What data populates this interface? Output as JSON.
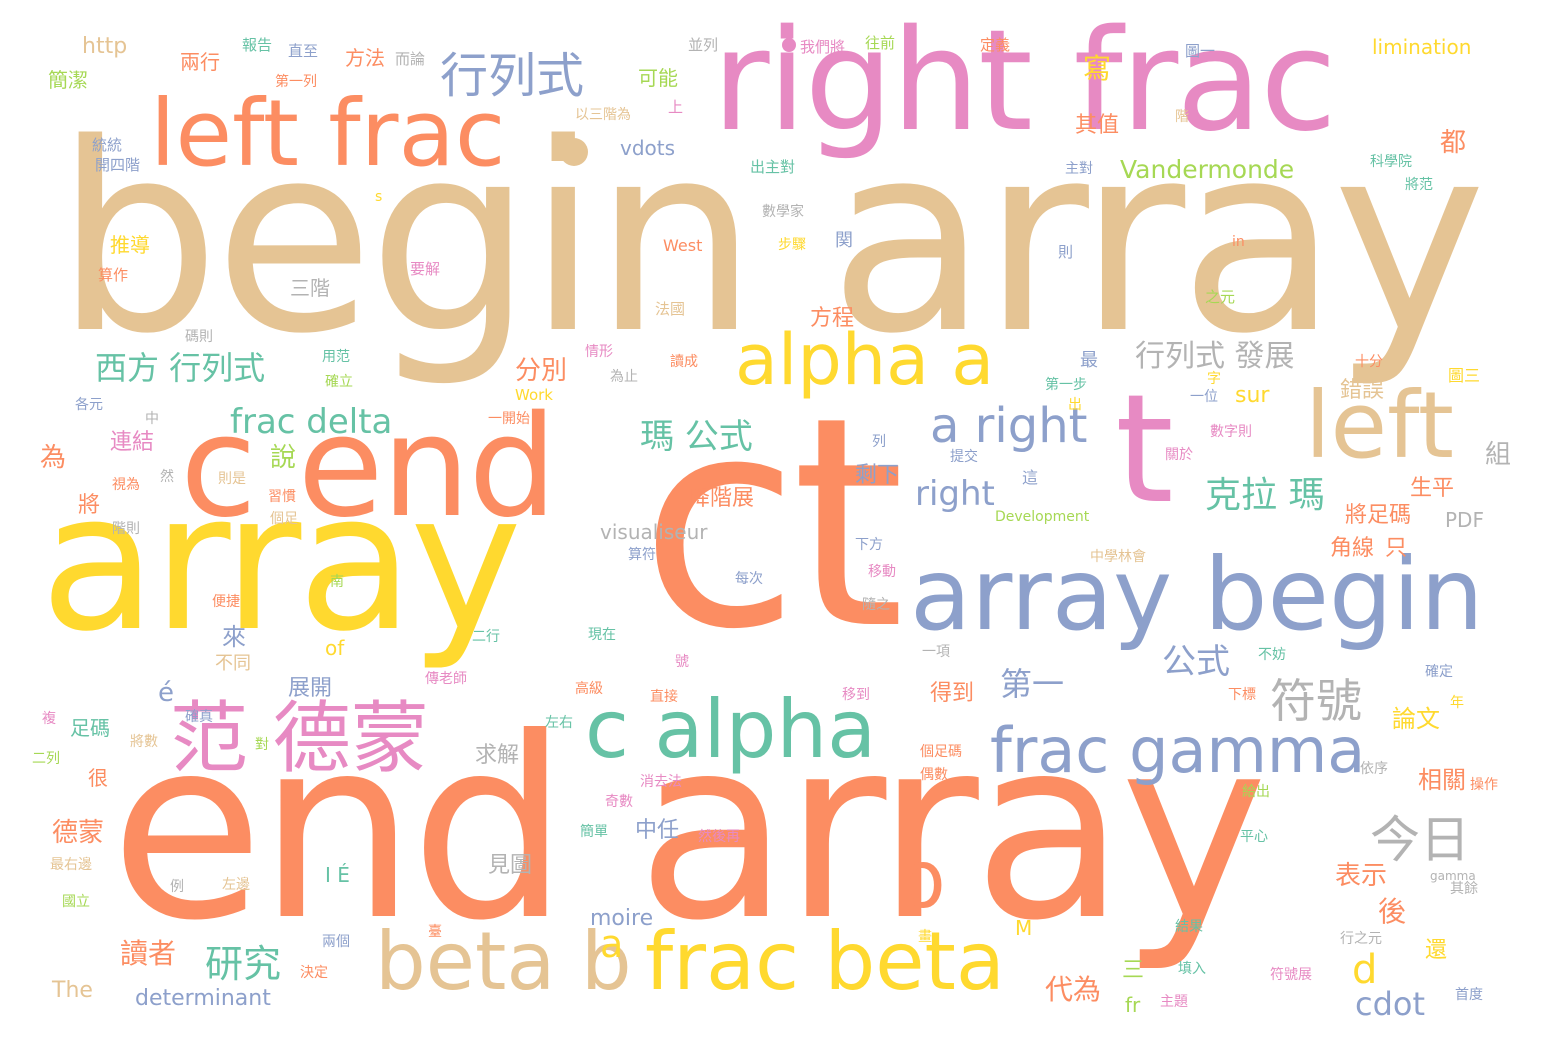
{
  "palette": {
    "tan": "#e5c494",
    "orange": "#fc8d62",
    "yellow": "#ffd92f",
    "blue": "#8da0cb",
    "pink": "#e78ac3",
    "green": "#66c2a5",
    "lime": "#a6d854",
    "gray": "#b3b3b3"
  },
  "words": [
    {
      "text": "begin array",
      "color": "tan"
    },
    {
      "text": "end array",
      "color": "orange"
    },
    {
      "text": "array",
      "color": "yellow"
    },
    {
      "text": "ct",
      "color": "orange"
    },
    {
      "text": "right frac",
      "color": "pink"
    },
    {
      "text": "c end",
      "color": "orange"
    },
    {
      "text": "left frac",
      "color": "orange"
    },
    {
      "text": "array begin",
      "color": "blue"
    },
    {
      "text": "frac beta",
      "color": "yellow"
    },
    {
      "text": "beta b",
      "color": "tan"
    },
    {
      "text": "c alpha",
      "color": "green"
    },
    {
      "text": "alpha a",
      "color": "yellow"
    },
    {
      "text": "left",
      "color": "tan"
    },
    {
      "text": "t",
      "color": "pink"
    },
    {
      "text": "frac gamma",
      "color": "blue"
    },
    {
      "text": "范 德蒙",
      "color": "pink"
    },
    {
      "text": "行列式",
      "color": "blue"
    },
    {
      "text": "a right",
      "color": "blue"
    },
    {
      "text": "b",
      "color": "orange"
    },
    {
      "text": "符號",
      "color": "gray"
    },
    {
      "text": "今日",
      "color": "gray"
    },
    {
      "text": "frac delta",
      "color": "green"
    },
    {
      "text": "西方 行列式",
      "color": "green"
    },
    {
      "text": "瑪 公式",
      "color": "green"
    },
    {
      "text": "克拉 瑪",
      "color": "green"
    },
    {
      "text": "行列式 發展",
      "color": "gray"
    },
    {
      "text": "right",
      "color": "blue"
    },
    {
      "text": "研究",
      "color": "green"
    },
    {
      "text": "公式",
      "color": "blue"
    },
    {
      "text": "第一",
      "color": "blue"
    },
    {
      "text": "Vandermonde",
      "color": "lime"
    },
    {
      "text": "cdot",
      "color": "blue"
    },
    {
      "text": "d",
      "color": "yellow"
    },
    {
      "text": "a",
      "color": "yellow"
    },
    {
      "text": "讀者",
      "color": "orange"
    },
    {
      "text": "代為",
      "color": "orange"
    },
    {
      "text": "寫",
      "color": "yellow"
    },
    {
      "text": "其值",
      "color": "orange"
    },
    {
      "text": "分別",
      "color": "orange"
    },
    {
      "text": "方程",
      "color": "orange"
    },
    {
      "text": "降階展",
      "color": "orange"
    },
    {
      "text": "論文",
      "color": "yellow"
    },
    {
      "text": "相關",
      "color": "orange"
    },
    {
      "text": "表示",
      "color": "orange"
    },
    {
      "text": "後",
      "color": "orange"
    },
    {
      "text": "德蒙",
      "color": "orange"
    },
    {
      "text": "連結",
      "color": "pink"
    },
    {
      "text": "說",
      "color": "lime"
    },
    {
      "text": "為",
      "color": "orange"
    },
    {
      "text": "來",
      "color": "blue"
    },
    {
      "text": "展開",
      "color": "blue"
    },
    {
      "text": "得到",
      "color": "orange"
    },
    {
      "text": "中任",
      "color": "blue"
    },
    {
      "text": "見圖",
      "color": "gray"
    },
    {
      "text": "求解",
      "color": "gray"
    },
    {
      "text": "剩下",
      "color": "blue"
    },
    {
      "text": "錯誤",
      "color": "tan"
    },
    {
      "text": "生平",
      "color": "orange"
    },
    {
      "text": "將足碼",
      "color": "orange"
    },
    {
      "text": "角線",
      "color": "orange"
    },
    {
      "text": "只",
      "color": "orange"
    },
    {
      "text": "組",
      "color": "gray"
    },
    {
      "text": "都",
      "color": "orange"
    },
    {
      "text": "sur",
      "color": "yellow"
    },
    {
      "text": "PDF",
      "color": "gray"
    },
    {
      "text": "visualiseur",
      "color": "gray"
    },
    {
      "text": "moire",
      "color": "blue"
    },
    {
      "text": "determinant",
      "color": "blue"
    },
    {
      "text": "The",
      "color": "tan"
    },
    {
      "text": "http",
      "color": "tan"
    },
    {
      "text": "limination",
      "color": "yellow"
    },
    {
      "text": "vdots",
      "color": "blue"
    },
    {
      "text": "簡潔",
      "color": "lime"
    },
    {
      "text": "兩行",
      "color": "orange"
    },
    {
      "text": "方法",
      "color": "orange"
    },
    {
      "text": "可能",
      "color": "lime"
    },
    {
      "text": "推導",
      "color": "yellow"
    },
    {
      "text": "三階",
      "color": "gray"
    },
    {
      "text": "足碼",
      "color": "green"
    },
    {
      "text": "I É",
      "color": "green"
    },
    {
      "text": "é",
      "color": "blue"
    },
    {
      "text": "不同",
      "color": "tan"
    },
    {
      "text": "of",
      "color": "yellow"
    },
    {
      "text": "M",
      "color": "yellow"
    },
    {
      "text": "fr",
      "color": "lime"
    },
    {
      "text": "三",
      "color": "lime"
    },
    {
      "text": "West",
      "color": "orange"
    },
    {
      "text": "Work",
      "color": "yellow"
    },
    {
      "text": "Development",
      "color": "lime"
    },
    {
      "text": "gamma",
      "color": "gray"
    },
    {
      "text": "報告",
      "color": "green"
    },
    {
      "text": "直至",
      "color": "blue"
    },
    {
      "text": "而論",
      "color": "gray"
    },
    {
      "text": "並列",
      "color": "gray"
    },
    {
      "text": "我們將",
      "color": "pink"
    },
    {
      "text": "往前",
      "color": "lime"
    },
    {
      "text": "定義",
      "color": "orange"
    },
    {
      "text": "圖一",
      "color": "blue"
    },
    {
      "text": "第一列",
      "color": "orange"
    },
    {
      "text": "以三階為",
      "color": "tan"
    },
    {
      "text": "上",
      "color": "pink"
    },
    {
      "text": "階",
      "color": "tan"
    },
    {
      "text": "科學院",
      "color": "green"
    },
    {
      "text": "統統",
      "color": "blue"
    },
    {
      "text": "開四階",
      "color": "blue"
    },
    {
      "text": "出主對",
      "color": "green"
    },
    {
      "text": "主對",
      "color": "blue"
    },
    {
      "text": "將范",
      "color": "green"
    },
    {
      "text": "數學家",
      "color": "gray"
    },
    {
      "text": "步驟",
      "color": "yellow"
    },
    {
      "text": "関",
      "color": "blue"
    },
    {
      "text": "算作",
      "color": "orange"
    },
    {
      "text": "要解",
      "color": "pink"
    },
    {
      "text": "法國",
      "color": "tan"
    },
    {
      "text": "則",
      "color": "blue"
    },
    {
      "text": "之元",
      "color": "lime"
    },
    {
      "text": "碼則",
      "color": "gray"
    },
    {
      "text": "用范",
      "color": "green"
    },
    {
      "text": "確立",
      "color": "lime"
    },
    {
      "text": "情形",
      "color": "pink"
    },
    {
      "text": "讀成",
      "color": "orange"
    },
    {
      "text": "為止",
      "color": "gray"
    },
    {
      "text": "最",
      "color": "blue"
    },
    {
      "text": "第一步",
      "color": "green"
    },
    {
      "text": "一位",
      "color": "blue"
    },
    {
      "text": "十分",
      "color": "orange"
    },
    {
      "text": "圖三",
      "color": "yellow"
    },
    {
      "text": "各元",
      "color": "blue"
    },
    {
      "text": "一開始",
      "color": "orange"
    },
    {
      "text": "數字則",
      "color": "pink"
    },
    {
      "text": "提交",
      "color": "blue"
    },
    {
      "text": "關於",
      "color": "pink"
    },
    {
      "text": "這",
      "color": "blue"
    },
    {
      "text": "習慣",
      "color": "orange"
    },
    {
      "text": "視為",
      "color": "orange"
    },
    {
      "text": "則是",
      "color": "tan"
    },
    {
      "text": "算符",
      "color": "blue"
    },
    {
      "text": "下方",
      "color": "blue"
    },
    {
      "text": "移動",
      "color": "pink"
    },
    {
      "text": "便捷",
      "color": "orange"
    },
    {
      "text": "隨之",
      "color": "gray"
    },
    {
      "text": "中學林會",
      "color": "tan"
    },
    {
      "text": "每次",
      "color": "blue"
    },
    {
      "text": "二行",
      "color": "green"
    },
    {
      "text": "現在",
      "color": "green"
    },
    {
      "text": "不妨",
      "color": "green"
    },
    {
      "text": "一項",
      "color": "gray"
    },
    {
      "text": "確定",
      "color": "blue"
    },
    {
      "text": "傳老師",
      "color": "pink"
    },
    {
      "text": "高級",
      "color": "orange"
    },
    {
      "text": "直接",
      "color": "orange"
    },
    {
      "text": "移到",
      "color": "pink"
    },
    {
      "text": "下標",
      "color": "orange"
    },
    {
      "text": "確真",
      "color": "blue"
    },
    {
      "text": "左右",
      "color": "green"
    },
    {
      "text": "個足碼",
      "color": "orange"
    },
    {
      "text": "偶數",
      "color": "orange"
    },
    {
      "text": "依序",
      "color": "gray"
    },
    {
      "text": "操作",
      "color": "orange"
    },
    {
      "text": "消去法",
      "color": "pink"
    },
    {
      "text": "給出",
      "color": "lime"
    },
    {
      "text": "奇數",
      "color": "pink"
    },
    {
      "text": "簡單",
      "color": "green"
    },
    {
      "text": "然後再",
      "color": "pink"
    },
    {
      "text": "平心",
      "color": "green"
    },
    {
      "text": "最右邊",
      "color": "tan"
    },
    {
      "text": "左邊",
      "color": "tan"
    },
    {
      "text": "例",
      "color": "gray"
    },
    {
      "text": "國立",
      "color": "lime"
    },
    {
      "text": "兩個",
      "color": "blue"
    },
    {
      "text": "決定",
      "color": "orange"
    },
    {
      "text": "結果",
      "color": "green"
    },
    {
      "text": "行之元",
      "color": "gray"
    },
    {
      "text": "填入",
      "color": "green"
    },
    {
      "text": "符號展",
      "color": "pink"
    },
    {
      "text": "首度",
      "color": "blue"
    },
    {
      "text": "主題",
      "color": "pink"
    },
    {
      "text": "其餘",
      "color": "gray"
    },
    {
      "text": "年",
      "color": "yellow"
    },
    {
      "text": "還",
      "color": "yellow"
    },
    {
      "text": "字",
      "color": "yellow"
    },
    {
      "text": "出",
      "color": "yellow"
    },
    {
      "text": "中",
      "color": "gray"
    },
    {
      "text": "然",
      "color": "gray"
    },
    {
      "text": "列",
      "color": "blue"
    },
    {
      "text": "將",
      "color": "orange"
    },
    {
      "text": "很",
      "color": "orange"
    },
    {
      "text": "二列",
      "color": "lime"
    },
    {
      "text": "階則",
      "color": "gray"
    },
    {
      "text": "個足",
      "color": "tan"
    },
    {
      "text": "南",
      "color": "lime"
    },
    {
      "text": "複",
      "color": "pink"
    },
    {
      "text": "將數",
      "color": "tan"
    },
    {
      "text": "對",
      "color": "lime"
    },
    {
      "text": "號",
      "color": "pink"
    },
    {
      "text": "畫",
      "color": "yellow"
    },
    {
      "text": "臺",
      "color": "orange"
    },
    {
      "text": "in",
      "color": "orange"
    },
    {
      "text": "s",
      "color": "yellow"
    }
  ]
}
